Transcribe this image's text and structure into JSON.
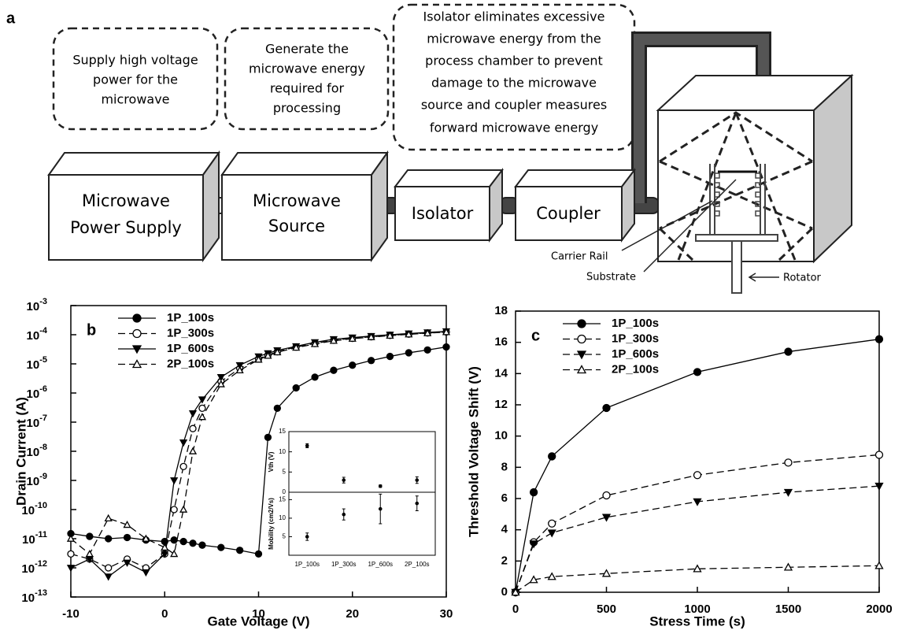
{
  "diagram": {
    "panel_label": "a",
    "notes": [
      [
        "Supply high voltage",
        "power for the",
        "microwave"
      ],
      [
        "Generate the",
        "microwave energy",
        "required for",
        "processing"
      ],
      [
        "Isolator eliminates excessive",
        "microwave energy from the",
        "process chamber to prevent",
        "damage to the microwave",
        "source and coupler measures",
        "forward microwave energy"
      ]
    ],
    "boxes": [
      [
        "Microwave",
        "Power Supply"
      ],
      [
        "Microwave",
        "Source"
      ],
      [
        "Isolator"
      ],
      [
        "Coupler"
      ]
    ],
    "labels": [
      "Carrier Rail",
      "Substrate",
      "Rotator"
    ]
  },
  "chart_data": [
    {
      "type": "line",
      "panel_label": "b",
      "x_label": "Gate Voltage (V)",
      "y_label": "Drain Current (A)",
      "log_y": true,
      "xlim": [
        -10,
        30
      ],
      "xticks": [
        -10,
        0,
        10,
        20,
        30
      ],
      "ylim": [
        1e-13,
        0.001
      ],
      "yticks": [
        {
          "value": 1e-13,
          "label": "10",
          "sup": "-13"
        },
        {
          "value": 1e-12,
          "label": "10",
          "sup": "-12"
        },
        {
          "value": 1e-11,
          "label": "10",
          "sup": "-11"
        },
        {
          "value": 1e-10,
          "label": "10",
          "sup": "-10"
        },
        {
          "value": 1e-09,
          "label": "10",
          "sup": "-9"
        },
        {
          "value": 1e-08,
          "label": "10",
          "sup": "-8"
        },
        {
          "value": 1e-07,
          "label": "10",
          "sup": "-7"
        },
        {
          "value": 1e-06,
          "label": "10",
          "sup": "-6"
        },
        {
          "value": 1e-05,
          "label": "10",
          "sup": "-5"
        },
        {
          "value": 0.0001,
          "label": "10",
          "sup": "-4"
        },
        {
          "value": 0.001,
          "label": "10",
          "sup": "-3"
        }
      ],
      "legend": "upper-left",
      "x": [
        -10,
        -8,
        -6,
        -4,
        -2,
        0,
        1,
        2,
        3,
        4,
        6,
        8,
        10,
        11,
        12,
        14,
        16,
        18,
        20,
        22,
        24,
        26,
        28,
        30
      ],
      "series": [
        {
          "name": "1P_100s",
          "color": "#000000",
          "marker": "filled-circle",
          "dash": "solid",
          "values": [
            1.5e-11,
            1.2e-11,
            1e-11,
            1.1e-11,
            9e-12,
            8e-12,
            9e-12,
            8e-12,
            7e-12,
            6e-12,
            5e-12,
            4e-12,
            3e-12,
            3e-08,
            3e-07,
            1.5e-06,
            3.5e-06,
            6e-06,
            9e-06,
            1.3e-05,
            1.8e-05,
            2.4e-05,
            3e-05,
            3.8e-05
          ]
        },
        {
          "name": "1P_300s",
          "color": "#000000",
          "marker": "open-circle",
          "dash": "dashed",
          "values": [
            3e-12,
            2e-12,
            1e-12,
            2e-12,
            1e-12,
            3e-12,
            1e-10,
            3e-09,
            6e-08,
            3e-07,
            2.5e-06,
            7e-06,
            1.5e-05,
            2e-05,
            2.6e-05,
            3.8e-05,
            5e-05,
            6.5e-05,
            7.5e-05,
            8.5e-05,
            9.5e-05,
            0.000105,
            0.000115,
            0.000125
          ]
        },
        {
          "name": "1P_600s",
          "color": "#000000",
          "marker": "filled-triangle-down",
          "dash": "solid",
          "values": [
            1e-12,
            2e-12,
            5e-13,
            1.5e-12,
            7e-13,
            3e-12,
            1e-09,
            2e-08,
            2e-07,
            6e-07,
            3.5e-06,
            9e-06,
            1.8e-05,
            2.3e-05,
            2.9e-05,
            4e-05,
            5.5e-05,
            7e-05,
            8e-05,
            9e-05,
            0.0001,
            0.00011,
            0.00012,
            0.00013
          ]
        },
        {
          "name": "2P_100s",
          "color": "#000000",
          "marker": "open-triangle-up",
          "dash": "dashed",
          "values": [
            1e-11,
            3e-12,
            5e-11,
            3e-11,
            1e-11,
            5e-12,
            3e-12,
            1e-10,
            1e-08,
            1.5e-07,
            2e-06,
            6e-06,
            1.4e-05,
            1.9e-05,
            2.5e-05,
            3.6e-05,
            4.8e-05,
            6.2e-05,
            7.3e-05,
            8.3e-05,
            9.3e-05,
            0.000103,
            0.000113,
            0.000123
          ]
        }
      ],
      "inset": {
        "categories": [
          "1P_100s",
          "1P_300s",
          "1P_600s",
          "2P_100s"
        ],
        "panels": [
          {
            "y_label": "Vth (V)",
            "ylim": [
              0,
              15
            ],
            "yticks": [
              0,
              5,
              10,
              15
            ],
            "values": [
              11.5,
              3,
              1.5,
              3
            ],
            "errors": [
              0.5,
              0.7,
              0.3,
              0.8
            ]
          },
          {
            "y_label": "Mobility (cm2/Vs)",
            "ylim": [
              0,
              17
            ],
            "yticks": [
              5,
              10,
              15
            ],
            "values": [
              5,
              11,
              12.5,
              14
            ],
            "errors": [
              1,
              1.5,
              4,
              2
            ]
          }
        ]
      }
    },
    {
      "type": "line",
      "panel_label": "c",
      "x_label": "Stress Time (s)",
      "y_label": "Threshold Voltage Shift (V)",
      "log_y": false,
      "xlim": [
        0,
        2000
      ],
      "xticks": [
        0,
        500,
        1000,
        1500,
        2000
      ],
      "ylim": [
        0,
        18
      ],
      "yticks": [
        0,
        2,
        4,
        6,
        8,
        10,
        12,
        14,
        16,
        18
      ],
      "legend": "upper-left",
      "x": [
        0,
        100,
        200,
        500,
        1000,
        1500,
        2000
      ],
      "series": [
        {
          "name": "1P_100s",
          "color": "#000000",
          "marker": "filled-circle",
          "dash": "solid",
          "values": [
            0,
            6.4,
            8.7,
            11.8,
            14.1,
            15.4,
            16.2
          ]
        },
        {
          "name": "1P_300s",
          "color": "#000000",
          "marker": "open-circle",
          "dash": "dashed",
          "values": [
            0,
            3.2,
            4.4,
            6.2,
            7.5,
            8.3,
            8.8
          ]
        },
        {
          "name": "1P_600s",
          "color": "#000000",
          "marker": "filled-triangle-down",
          "dash": "dashed",
          "values": [
            0,
            3.1,
            3.8,
            4.8,
            5.8,
            6.4,
            6.8
          ]
        },
        {
          "name": "2P_100s",
          "color": "#000000",
          "marker": "open-triangle-up",
          "dash": "dashed",
          "values": [
            0,
            0.8,
            1.0,
            1.2,
            1.5,
            1.6,
            1.7
          ]
        }
      ]
    }
  ]
}
